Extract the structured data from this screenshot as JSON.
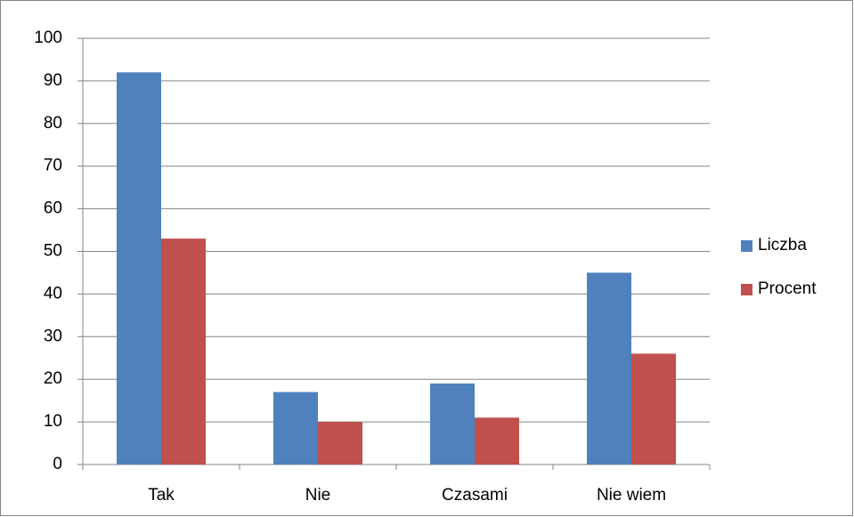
{
  "chart_data": {
    "type": "bar",
    "categories": [
      "Tak",
      "Nie",
      "Czasami",
      "Nie wiem"
    ],
    "series": [
      {
        "name": "Liczba",
        "color": "#4f81bd",
        "values": [
          92,
          17,
          19,
          45
        ]
      },
      {
        "name": "Procent",
        "color": "#c0504d",
        "values": [
          53,
          10,
          11,
          26
        ]
      }
    ],
    "ylim": [
      0,
      100
    ],
    "yticks": [
      0,
      10,
      20,
      30,
      40,
      50,
      60,
      70,
      80,
      90,
      100
    ],
    "grid": true,
    "legend": "right"
  }
}
